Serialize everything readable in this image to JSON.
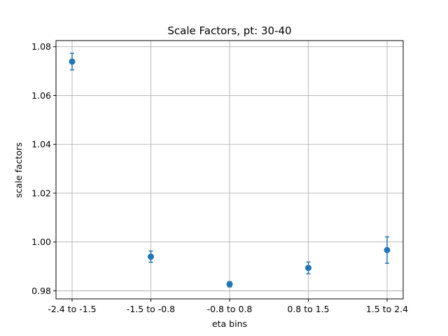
{
  "chart_data": {
    "type": "scatter",
    "title": "Scale Factors, pt: 30-40",
    "xlabel": "eta bins",
    "ylabel": "scale factors",
    "categories": [
      "-2.4 to -1.5",
      "-1.5 to -0.8",
      "-0.8 to 0.8",
      "0.8 to 1.5",
      "1.5 to 2.4"
    ],
    "series": [
      {
        "values": [
          1.0739,
          0.994,
          0.9827,
          0.9894,
          0.9967
        ],
        "errors": [
          0.0034,
          0.0023,
          0.0011,
          0.0024,
          0.0054
        ],
        "color": "#1f77b4"
      }
    ],
    "ylim": [
      0.9767,
      1.0825
    ],
    "yticks": [
      0.98,
      1.0,
      1.02,
      1.04,
      1.06,
      1.08
    ],
    "ytick_labels": [
      "0.98",
      "1.00",
      "1.02",
      "1.04",
      "1.06",
      "1.08"
    ],
    "grid": true,
    "error_bars": true
  }
}
